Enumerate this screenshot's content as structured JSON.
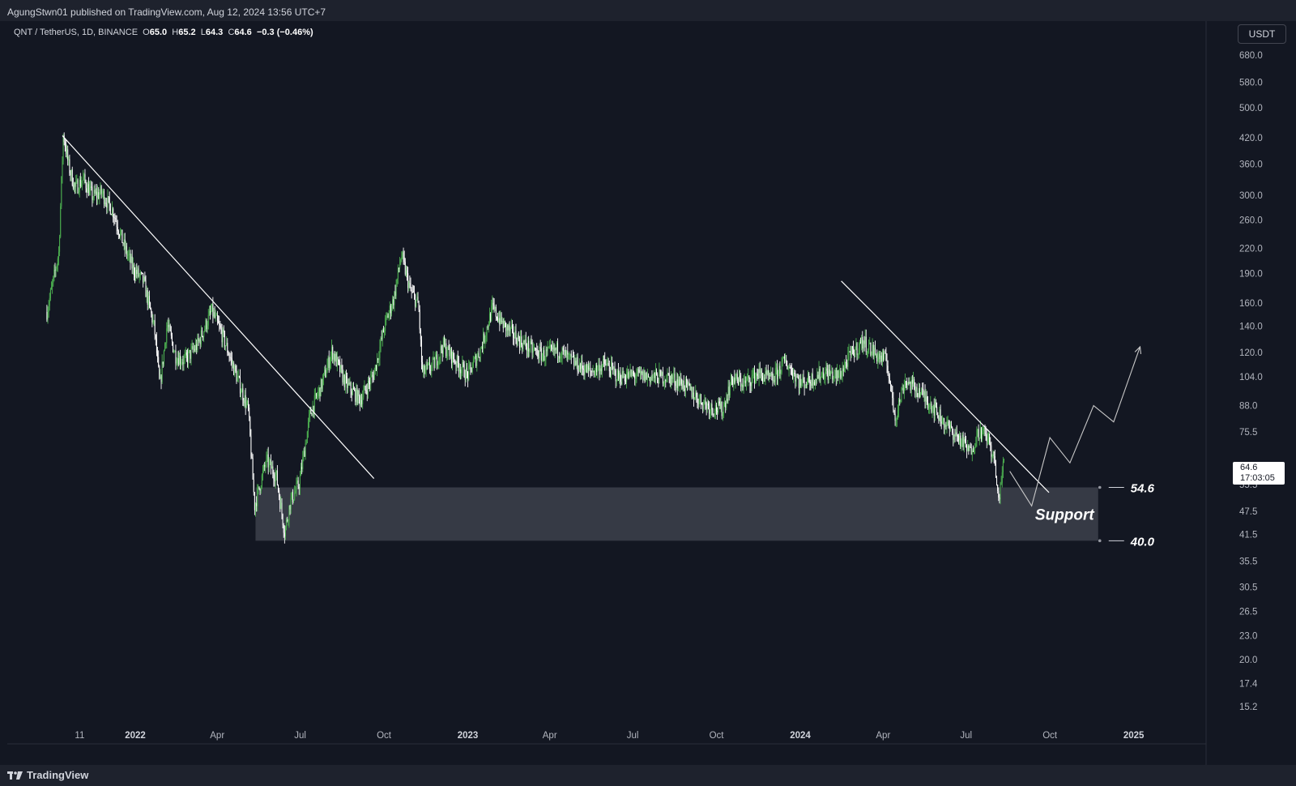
{
  "header": {
    "publish_text": "AgungStwn01 published on TradingView.com, Aug 12, 2024 13:56 UTC+7"
  },
  "legend": {
    "symbol": "QNT / TetherUS, 1D, BINANCE",
    "o_label": "O",
    "o_value": "65.0",
    "h_label": "H",
    "h_value": "65.2",
    "l_label": "L",
    "l_value": "64.3",
    "c_label": "C",
    "c_value": "64.6",
    "change": "−0.3 (−0.46%)"
  },
  "currency_button": "USDT",
  "price_label": {
    "price": "64.6",
    "countdown": "17:03:05"
  },
  "footer": {
    "brand": "TradingView"
  },
  "colors": {
    "background": "#131722",
    "up": "#4caf50",
    "down": "#ffffff",
    "support_zone": "#363a45"
  },
  "chart_data": {
    "type": "candlestick",
    "symbol": "QNT / TetherUS",
    "y_scale": "log",
    "y_ticks": [
      "680.0",
      "580.0",
      "500.0",
      "420.0",
      "360.0",
      "300.0",
      "260.0",
      "220.0",
      "190.0",
      "160.0",
      "140.0",
      "120.0",
      "104.0",
      "88.0",
      "75.5",
      "55.5",
      "47.5",
      "41.5",
      "35.5",
      "30.5",
      "26.5",
      "23.0",
      "20.0",
      "17.4",
      "15.2"
    ],
    "x_ticks": [
      {
        "label": "11",
        "date": "2021-11-01"
      },
      {
        "label": "2022",
        "date": "2022-01-01"
      },
      {
        "label": "Apr",
        "date": "2022-04-01"
      },
      {
        "label": "Jul",
        "date": "2022-07-01"
      },
      {
        "label": "Oct",
        "date": "2022-10-01"
      },
      {
        "label": "2023",
        "date": "2023-01-01"
      },
      {
        "label": "Apr",
        "date": "2023-04-01"
      },
      {
        "label": "Jul",
        "date": "2023-07-01"
      },
      {
        "label": "Oct",
        "date": "2023-10-01"
      },
      {
        "label": "2024",
        "date": "2024-01-01"
      },
      {
        "label": "Apr",
        "date": "2024-04-01"
      },
      {
        "label": "Jul",
        "date": "2024-07-01"
      },
      {
        "label": "Oct",
        "date": "2024-10-01"
      },
      {
        "label": "2025",
        "date": "2025-01-01"
      }
    ],
    "price_path": [
      [
        "2021-09-26",
        152
      ],
      [
        "2021-10-03",
        182
      ],
      [
        "2021-10-09",
        215
      ],
      [
        "2021-10-14",
        430
      ],
      [
        "2021-10-20",
        355
      ],
      [
        "2021-10-27",
        312
      ],
      [
        "2021-11-05",
        330
      ],
      [
        "2021-11-15",
        298
      ],
      [
        "2021-11-25",
        305
      ],
      [
        "2021-12-08",
        272
      ],
      [
        "2021-12-20",
        222
      ],
      [
        "2021-12-30",
        195
      ],
      [
        "2022-01-10",
        182
      ],
      [
        "2022-01-22",
        138
      ],
      [
        "2022-01-28",
        98
      ],
      [
        "2022-02-05",
        142
      ],
      [
        "2022-02-14",
        118
      ],
      [
        "2022-02-24",
        114
      ],
      [
        "2022-03-10",
        125
      ],
      [
        "2022-03-26",
        153
      ],
      [
        "2022-04-08",
        130
      ],
      [
        "2022-04-20",
        108
      ],
      [
        "2022-05-05",
        86
      ],
      [
        "2022-05-12",
        49
      ],
      [
        "2022-05-25",
        64
      ],
      [
        "2022-06-05",
        58
      ],
      [
        "2022-06-14",
        42
      ],
      [
        "2022-06-20",
        50
      ],
      [
        "2022-06-30",
        56
      ],
      [
        "2022-07-12",
        84
      ],
      [
        "2022-07-25",
        100
      ],
      [
        "2022-08-05",
        121
      ],
      [
        "2022-08-20",
        100
      ],
      [
        "2022-09-05",
        91
      ],
      [
        "2022-09-20",
        106
      ],
      [
        "2022-10-02",
        141
      ],
      [
        "2022-10-12",
        165
      ],
      [
        "2022-10-20",
        212
      ],
      [
        "2022-10-30",
        172
      ],
      [
        "2022-11-08",
        158
      ],
      [
        "2022-11-12",
        106
      ],
      [
        "2022-11-25",
        112
      ],
      [
        "2022-12-05",
        125
      ],
      [
        "2022-12-20",
        113
      ],
      [
        "2023-01-01",
        105
      ],
      [
        "2023-01-15",
        122
      ],
      [
        "2023-01-28",
        155
      ],
      [
        "2023-02-10",
        140
      ],
      [
        "2023-02-28",
        128
      ],
      [
        "2023-03-12",
        122
      ],
      [
        "2023-03-25",
        118
      ],
      [
        "2023-04-10",
        122
      ],
      [
        "2023-04-25",
        114
      ],
      [
        "2023-05-15",
        107
      ],
      [
        "2023-06-01",
        112
      ],
      [
        "2023-06-15",
        104
      ],
      [
        "2023-07-01",
        105
      ],
      [
        "2023-07-20",
        104
      ],
      [
        "2023-08-10",
        104
      ],
      [
        "2023-08-25",
        100
      ],
      [
        "2023-09-10",
        92
      ],
      [
        "2023-09-25",
        87
      ],
      [
        "2023-10-08",
        86
      ],
      [
        "2023-10-18",
        103
      ],
      [
        "2023-11-01",
        100
      ],
      [
        "2023-11-15",
        106
      ],
      [
        "2023-12-01",
        102
      ],
      [
        "2023-12-15",
        114
      ],
      [
        "2023-12-28",
        104
      ],
      [
        "2024-01-01",
        100
      ],
      [
        "2024-01-15",
        103
      ],
      [
        "2024-01-28",
        107
      ],
      [
        "2024-02-12",
        104
      ],
      [
        "2024-02-25",
        118
      ],
      [
        "2024-03-10",
        128
      ],
      [
        "2024-03-25",
        118
      ],
      [
        "2024-04-05",
        114
      ],
      [
        "2024-04-14",
        82
      ],
      [
        "2024-04-25",
        102
      ],
      [
        "2024-05-10",
        96
      ],
      [
        "2024-05-25",
        88
      ],
      [
        "2024-06-10",
        78
      ],
      [
        "2024-06-25",
        72
      ],
      [
        "2024-07-05",
        67
      ],
      [
        "2024-07-15",
        76
      ],
      [
        "2024-07-25",
        73
      ],
      [
        "2024-08-02",
        62
      ],
      [
        "2024-08-05",
        50
      ],
      [
        "2024-08-12",
        64.6
      ]
    ],
    "trendlines": [
      {
        "from": [
          "2021-10-13",
          425
        ],
        "to": [
          "2022-09-20",
          57.5
        ]
      },
      {
        "from": [
          "2024-02-15",
          182
        ],
        "to": [
          "2024-03-21",
          151
        ]
      },
      {
        "from": [
          "2024-03-21",
          151
        ],
        "to": [
          "2024-09-30",
          53
        ]
      }
    ],
    "projection_path": [
      [
        "2024-08-18",
        60
      ],
      [
        "2024-09-11",
        49
      ],
      [
        "2024-10-01",
        73
      ],
      [
        "2024-10-23",
        63
      ],
      [
        "2024-11-18",
        88
      ],
      [
        "2024-12-10",
        80
      ],
      [
        "2025-01-08",
        124
      ]
    ],
    "support_zone": {
      "label": "Support",
      "high": 54.6,
      "low": 40.0,
      "start": "2022-05-13",
      "end": "2024-11-23"
    },
    "level_labels": [
      "54.6",
      "40.0"
    ],
    "last_price": 64.6
  }
}
